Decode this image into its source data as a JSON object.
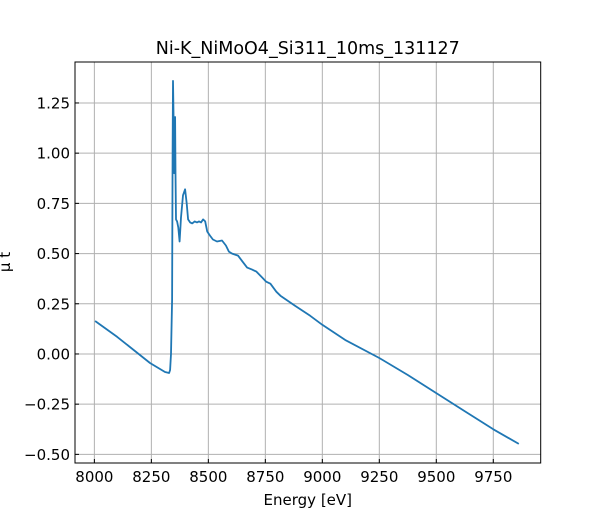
{
  "chart_data": {
    "type": "line",
    "title": "Ni-K_NiMoO4_Si311_10ms_131127",
    "xlabel": "Energy [eV]",
    "ylabel": "μ t",
    "xlim": [
      7915,
      9958
    ],
    "ylim": [
      -0.543,
      1.454
    ],
    "xticks": [
      8000,
      8250,
      8500,
      8750,
      9000,
      9250,
      9500,
      9750
    ],
    "xtick_labels": [
      "8000",
      "8250",
      "8500",
      "8750",
      "9000",
      "9250",
      "9500",
      "9750"
    ],
    "yticks": [
      -0.5,
      -0.25,
      0,
      0.25,
      0.5,
      0.75,
      1.0,
      1.25
    ],
    "ytick_labels": [
      "−0.50",
      "−0.25",
      "0.00",
      "0.25",
      "0.50",
      "0.75",
      "1.00",
      "1.25"
    ],
    "grid": true,
    "series_color": "#1f77b4",
    "series": [
      {
        "name": "mu t",
        "x": [
          8003,
          8100,
          8244,
          8310,
          8328,
          8332,
          8336,
          8341,
          8343,
          8345,
          8347,
          8350,
          8354,
          8356,
          8358,
          8363,
          8368,
          8374,
          8380,
          8389,
          8398,
          8405,
          8411,
          8420,
          8429,
          8440,
          8450,
          8459,
          8468,
          8477,
          8486,
          8495,
          8507,
          8520,
          8538,
          8560,
          8577,
          8590,
          8604,
          8630,
          8650,
          8670,
          8692,
          8711,
          8737,
          8754,
          8772,
          8798,
          8816,
          8880,
          8947,
          9000,
          9100,
          9250,
          9375,
          9500,
          9625,
          9750,
          9862
        ],
        "y": [
          0.164,
          0.085,
          -0.045,
          -0.09,
          -0.095,
          -0.08,
          0.0,
          0.27,
          1.0,
          1.36,
          1.2,
          0.9,
          1.18,
          0.9,
          0.67,
          0.66,
          0.63,
          0.56,
          0.68,
          0.79,
          0.82,
          0.75,
          0.67,
          0.655,
          0.65,
          0.66,
          0.655,
          0.66,
          0.655,
          0.67,
          0.66,
          0.61,
          0.59,
          0.57,
          0.56,
          0.565,
          0.54,
          0.51,
          0.5,
          0.49,
          0.46,
          0.43,
          0.42,
          0.41,
          0.38,
          0.36,
          0.35,
          0.31,
          0.29,
          0.24,
          0.19,
          0.145,
          0.07,
          -0.02,
          -0.105,
          -0.195,
          -0.285,
          -0.375,
          -0.448
        ]
      }
    ]
  }
}
